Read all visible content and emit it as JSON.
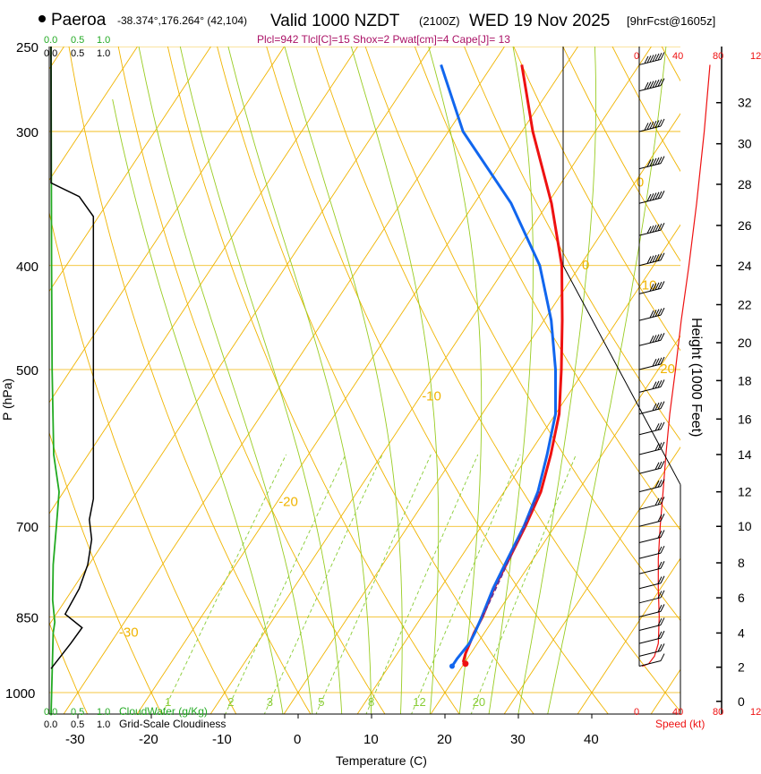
{
  "header": {
    "location": "Paeroa",
    "coords": "-38.374°,176.264° (42,104)",
    "valid_label": "Valid 1000 NZDT",
    "utc": "(2100Z)",
    "date": "WED 19 Nov 2025",
    "forecast": "[9hrFcst@1605z]",
    "params": "Plcl=942 Tlcl[C]=15 Shox=2 Pwat[cm]=4 Cape[J]= 13"
  },
  "chart_data": {
    "type": "line",
    "title": "Valid 1000 NZDT (2100Z) WED 19 Nov 2025",
    "xlabel": "Temperature (C)",
    "ylabel": "P (hPa)",
    "y2label": "Height (1000 Feet)",
    "xlim": [
      -35,
      45
    ],
    "ylim": [
      1050,
      250
    ],
    "log_y": true,
    "x_ticks": [
      "-30",
      "-20",
      "-10",
      "0",
      "10",
      "20",
      "30",
      "40"
    ],
    "x_tick_values": [
      -30,
      -20,
      -10,
      0,
      10,
      20,
      30,
      40
    ],
    "p_ticks": [
      {
        "p": 250,
        "label": "250"
      },
      {
        "p": 300,
        "label": "300"
      },
      {
        "p": 400,
        "label": "400"
      },
      {
        "p": 500,
        "label": "500"
      },
      {
        "p": 700,
        "label": "700"
      },
      {
        "p": 850,
        "label": "850"
      },
      {
        "p": 1000,
        "label": "1000"
      }
    ],
    "height_ticks": [
      {
        "ft": 0,
        "p": 1019,
        "label": "0"
      },
      {
        "ft": 2,
        "p": 947,
        "label": "2"
      },
      {
        "ft": 4,
        "p": 880,
        "label": "4"
      },
      {
        "ft": 6,
        "p": 816,
        "label": "6"
      },
      {
        "ft": 8,
        "p": 757,
        "label": "8"
      },
      {
        "ft": 10,
        "p": 700,
        "label": "10"
      },
      {
        "ft": 12,
        "p": 650,
        "label": "12"
      },
      {
        "ft": 14,
        "p": 600,
        "label": "14"
      },
      {
        "ft": 16,
        "p": 556,
        "label": "16"
      },
      {
        "ft": 18,
        "p": 512,
        "label": "18"
      },
      {
        "ft": 20,
        "p": 472,
        "label": "20"
      },
      {
        "ft": 22,
        "p": 435,
        "label": "22"
      },
      {
        "ft": 24,
        "p": 400,
        "label": "24"
      },
      {
        "ft": 26,
        "p": 367,
        "label": "26"
      },
      {
        "ft": 28,
        "p": 336,
        "label": "28"
      },
      {
        "ft": 30,
        "p": 308,
        "label": "30"
      },
      {
        "ft": 32,
        "p": 282,
        "label": "32"
      }
    ],
    "isotherm_labels": [
      {
        "t": 10,
        "p": 300,
        "label": "10"
      },
      {
        "t": 0,
        "p": 400,
        "label": "0"
      },
      {
        "t": -10,
        "p": 530,
        "label": "-10"
      },
      {
        "t": -20,
        "p": 665,
        "label": "-20"
      },
      {
        "t": -30,
        "p": 880,
        "label": "-30"
      },
      {
        "t": 0,
        "p": 335,
        "label": "0"
      },
      {
        "t": 10,
        "p": 418,
        "label": "10"
      },
      {
        "t": 20,
        "p": 500,
        "label": "20"
      },
      {
        "t": 30,
        "p": 580,
        "label": "30"
      }
    ],
    "mixing_ratio_labels": [
      "1",
      "2",
      "3",
      "5",
      "8",
      "12",
      "20"
    ],
    "mixing_ratio_values": [
      1,
      2,
      3,
      5,
      8,
      12,
      20
    ],
    "series": [
      {
        "name": "Temperature",
        "color": "#ee1111",
        "points": [
          {
            "p": 940,
            "t": 20.2
          },
          {
            "p": 935,
            "t": 19.7
          },
          {
            "p": 920,
            "t": 19.3
          },
          {
            "p": 880,
            "t": 18.6
          },
          {
            "p": 850,
            "t": 18.3
          },
          {
            "p": 800,
            "t": 17.3
          },
          {
            "p": 750,
            "t": 16.7
          },
          {
            "p": 700,
            "t": 16.0
          },
          {
            "p": 650,
            "t": 15.0
          },
          {
            "p": 600,
            "t": 13.0
          },
          {
            "p": 550,
            "t": 10.5
          },
          {
            "p": 500,
            "t": 6.8
          },
          {
            "p": 450,
            "t": 2.5
          },
          {
            "p": 400,
            "t": -2.5
          },
          {
            "p": 350,
            "t": -9.5
          },
          {
            "p": 300,
            "t": -18.5
          },
          {
            "p": 260,
            "t": -26.0
          }
        ]
      },
      {
        "name": "Dewpoint",
        "color": "#1166ee",
        "points": [
          {
            "p": 945,
            "t": 18.6
          },
          {
            "p": 930,
            "t": 18.6
          },
          {
            "p": 900,
            "t": 18.9
          },
          {
            "p": 880,
            "t": 18.7
          },
          {
            "p": 850,
            "t": 18.2
          },
          {
            "p": 800,
            "t": 17.2
          },
          {
            "p": 750,
            "t": 16.5
          },
          {
            "p": 700,
            "t": 15.8
          },
          {
            "p": 650,
            "t": 14.6
          },
          {
            "p": 600,
            "t": 12.5
          },
          {
            "p": 550,
            "t": 10.0
          },
          {
            "p": 500,
            "t": 6.0
          },
          {
            "p": 450,
            "t": 1.0
          },
          {
            "p": 400,
            "t": -5.5
          },
          {
            "p": 350,
            "t": -15.0
          },
          {
            "p": 300,
            "t": -28.0
          },
          {
            "p": 260,
            "t": -37.0
          }
        ]
      }
    ],
    "cloud_water_path": [
      {
        "p": 1050,
        "v": 0.0
      },
      {
        "p": 880,
        "v": 0.04
      },
      {
        "p": 860,
        "v": 0.07
      },
      {
        "p": 820,
        "v": 0.03
      },
      {
        "p": 760,
        "v": 0.04
      },
      {
        "p": 700,
        "v": 0.1
      },
      {
        "p": 650,
        "v": 0.15
      },
      {
        "p": 600,
        "v": 0.05
      },
      {
        "p": 500,
        "v": 0.02
      },
      {
        "p": 400,
        "v": 0.01
      },
      {
        "p": 250,
        "v": 0.0
      }
    ],
    "cloudiness_path": [
      {
        "p": 950,
        "v": 0.0
      },
      {
        "p": 900,
        "v": 0.35
      },
      {
        "p": 870,
        "v": 0.55
      },
      {
        "p": 845,
        "v": 0.25
      },
      {
        "p": 800,
        "v": 0.5
      },
      {
        "p": 760,
        "v": 0.65
      },
      {
        "p": 720,
        "v": 0.72
      },
      {
        "p": 690,
        "v": 0.68
      },
      {
        "p": 660,
        "v": 0.75
      },
      {
        "p": 640,
        "v": 0.75
      },
      {
        "p": 360,
        "v": 0.75
      },
      {
        "p": 345,
        "v": 0.5
      },
      {
        "p": 335,
        "v": 0.0
      },
      {
        "p": 250,
        "v": 0.0
      }
    ],
    "wind_speed": [
      {
        "p": 945,
        "s": 1
      },
      {
        "p": 940,
        "s": 8
      },
      {
        "p": 925,
        "s": 14
      },
      {
        "p": 900,
        "s": 18
      },
      {
        "p": 850,
        "s": 19
      },
      {
        "p": 800,
        "s": 18
      },
      {
        "p": 750,
        "s": 18
      },
      {
        "p": 700,
        "s": 20
      },
      {
        "p": 650,
        "s": 23
      },
      {
        "p": 600,
        "s": 26
      },
      {
        "p": 550,
        "s": 30
      },
      {
        "p": 500,
        "s": 36
      },
      {
        "p": 450,
        "s": 42
      },
      {
        "p": 400,
        "s": 50
      },
      {
        "p": 350,
        "s": 58
      },
      {
        "p": 300,
        "s": 66
      },
      {
        "p": 260,
        "s": 72
      }
    ],
    "wind_barb_pressures": [
      945,
      925,
      900,
      875,
      850,
      825,
      800,
      775,
      750,
      725,
      700,
      675,
      650,
      625,
      600,
      575,
      550,
      525,
      500,
      475,
      450,
      425,
      400,
      375,
      350,
      325,
      300,
      275,
      260
    ],
    "wind_barb_speeds": [
      10,
      15,
      20,
      20,
      20,
      20,
      20,
      20,
      20,
      20,
      20,
      25,
      25,
      25,
      25,
      30,
      35,
      35,
      40,
      45,
      45,
      50,
      55,
      55,
      60,
      60,
      65,
      70,
      70
    ]
  },
  "labels": {
    "cloudwater_scale_top": [
      "0.0",
      "0.5",
      "1.0"
    ],
    "cloudiness_scale_top": [
      "0.0",
      "0.5",
      "1.0"
    ],
    "cloudwater_scale_bottom": [
      "0.0",
      "0.5",
      "1.0"
    ],
    "cloudwater_title": "CloudWater (g/Kg)",
    "cloudiness_scale_bottom": [
      "0.0",
      "0.5",
      "1.0"
    ],
    "cloudiness_title": "Grid-Scale Cloudiness",
    "speed_scale_top": [
      "0",
      "40",
      "80",
      "12"
    ],
    "speed_scale_bottom": [
      "0",
      "40",
      "80",
      "12"
    ],
    "speed_title": "Speed (kt)"
  },
  "colors": {
    "isotherm": "#f0b400",
    "dry_adiabat": "#f0b400",
    "moist_adiabat": "#99cc22",
    "mixing_ratio": "#88cc33",
    "cloudwater": "#22aa22",
    "speed": "#ee1111",
    "params": "#aa1166"
  }
}
